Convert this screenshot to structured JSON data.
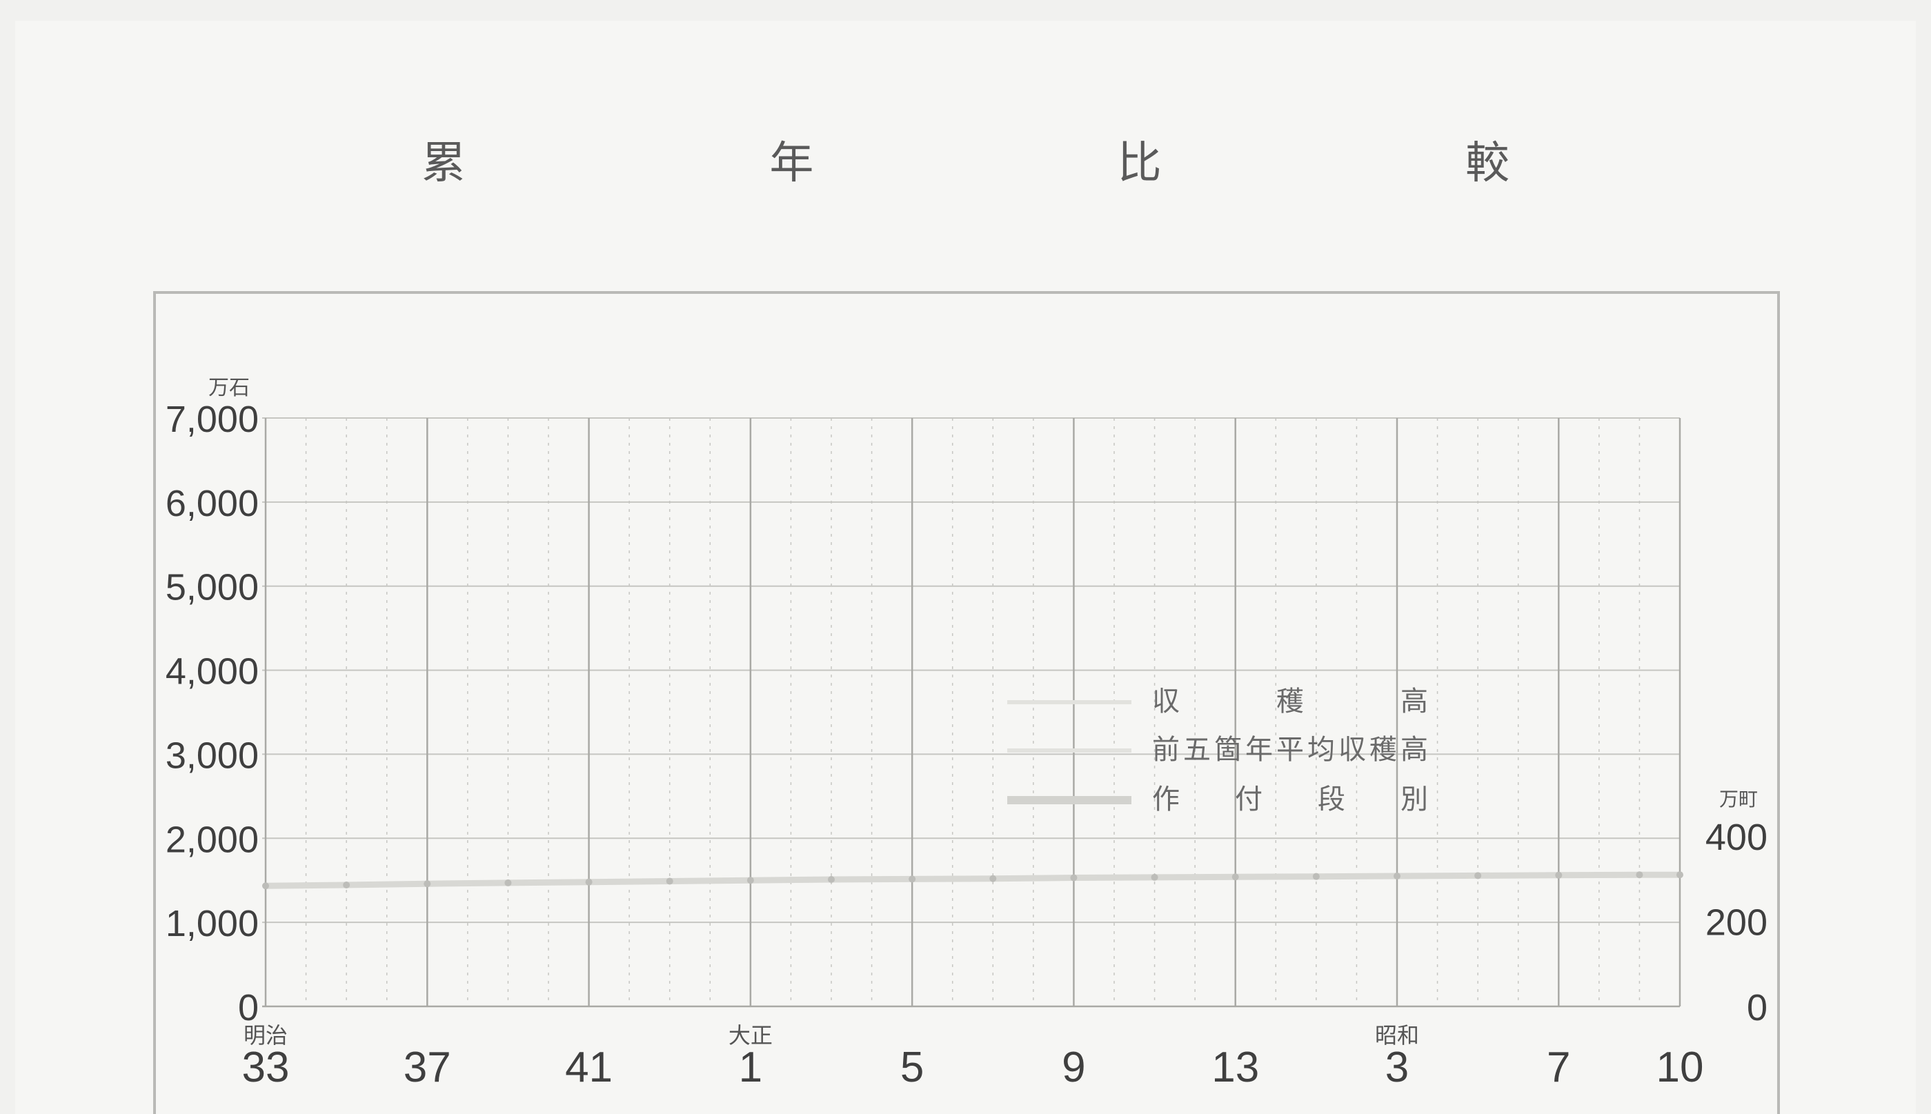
{
  "chart_data": {
    "type": "line",
    "title": "累 年 比 較",
    "left_axis": {
      "unit": "万石",
      "ticks": [
        "0",
        "1,000",
        "2,000",
        "3,000",
        "4,000",
        "5,000",
        "6,000",
        "7,000"
      ],
      "range": [
        0,
        7000
      ]
    },
    "right_axis": {
      "unit": "万町",
      "ticks": [
        "0",
        "200",
        "400"
      ],
      "range": [
        0,
        400
      ]
    },
    "x_axis": {
      "era_labels": [
        {
          "label": "明治",
          "at": 0
        },
        {
          "label": "大正",
          "at": 12
        },
        {
          "label": "昭和",
          "at": 28
        }
      ],
      "ticks": [
        {
          "label": "33",
          "at": 0
        },
        {
          "label": "37",
          "at": 4
        },
        {
          "label": "41",
          "at": 8
        },
        {
          "label": "1",
          "at": 12
        },
        {
          "label": "5",
          "at": 16
        },
        {
          "label": "9",
          "at": 20
        },
        {
          "label": "13",
          "at": 24
        },
        {
          "label": "3",
          "at": 28
        },
        {
          "label": "7",
          "at": 32
        },
        {
          "label": "10",
          "at": 35
        }
      ],
      "range": [
        0,
        35
      ]
    },
    "legend": [
      {
        "name": "収　　穫　　高"
      },
      {
        "name": "前五箇年平均収穫高"
      },
      {
        "name": "作　付　段　別"
      }
    ],
    "series": [
      {
        "name": "作　付　段　別",
        "axis": "right",
        "x": [
          0,
          2,
          4,
          6,
          8,
          10,
          12,
          14,
          16,
          18,
          20,
          22,
          24,
          26,
          28,
          30,
          32,
          34,
          35
        ],
        "values": [
          283,
          285,
          288,
          290,
          292,
          294,
          296,
          298,
          299,
          300,
          302,
          303,
          304,
          305,
          306,
          307,
          308,
          309,
          309
        ]
      }
    ],
    "grid": true
  },
  "colors": {
    "grid": "#c6c6c2",
    "grid_major": "#a9a9a5",
    "series_line": "#d8d8d4",
    "text": "#3f3f3f"
  }
}
